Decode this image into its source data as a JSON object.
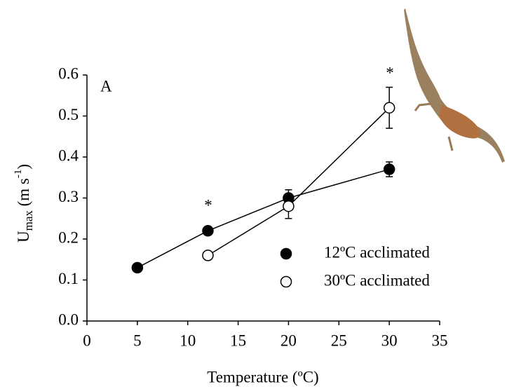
{
  "chart_data": {
    "type": "line",
    "panel_label": "A",
    "x_label": "Temperature (ºC)",
    "y_label": [
      "U",
      "max",
      " (m s",
      "-1",
      ")"
    ],
    "series": [
      {
        "name": "12ºC acclimated",
        "color": "#000000",
        "marker": "filled",
        "x": [
          5,
          12,
          20,
          30
        ],
        "values": [
          0.13,
          0.22,
          0.3,
          0.37
        ],
        "errors": [
          0.005,
          0.01,
          0.02,
          0.018
        ]
      },
      {
        "name": "30ºC acclimated",
        "color": "#000000",
        "marker": "open",
        "x": [
          12,
          20,
          30
        ],
        "values": [
          0.16,
          0.28,
          0.52
        ],
        "errors": [
          0.01,
          0.03,
          0.05
        ]
      }
    ],
    "annotations": [
      "*",
      "*"
    ],
    "xlim": [
      0,
      35
    ],
    "xticks": [
      0,
      5,
      10,
      15,
      20,
      25,
      30,
      35
    ],
    "ylim": [
      0,
      0.6
    ],
    "yticks": [
      {
        "value": 0,
        "label": "0.0"
      },
      0.1,
      0.2,
      0.3,
      0.4,
      0.5,
      0.6
    ]
  }
}
